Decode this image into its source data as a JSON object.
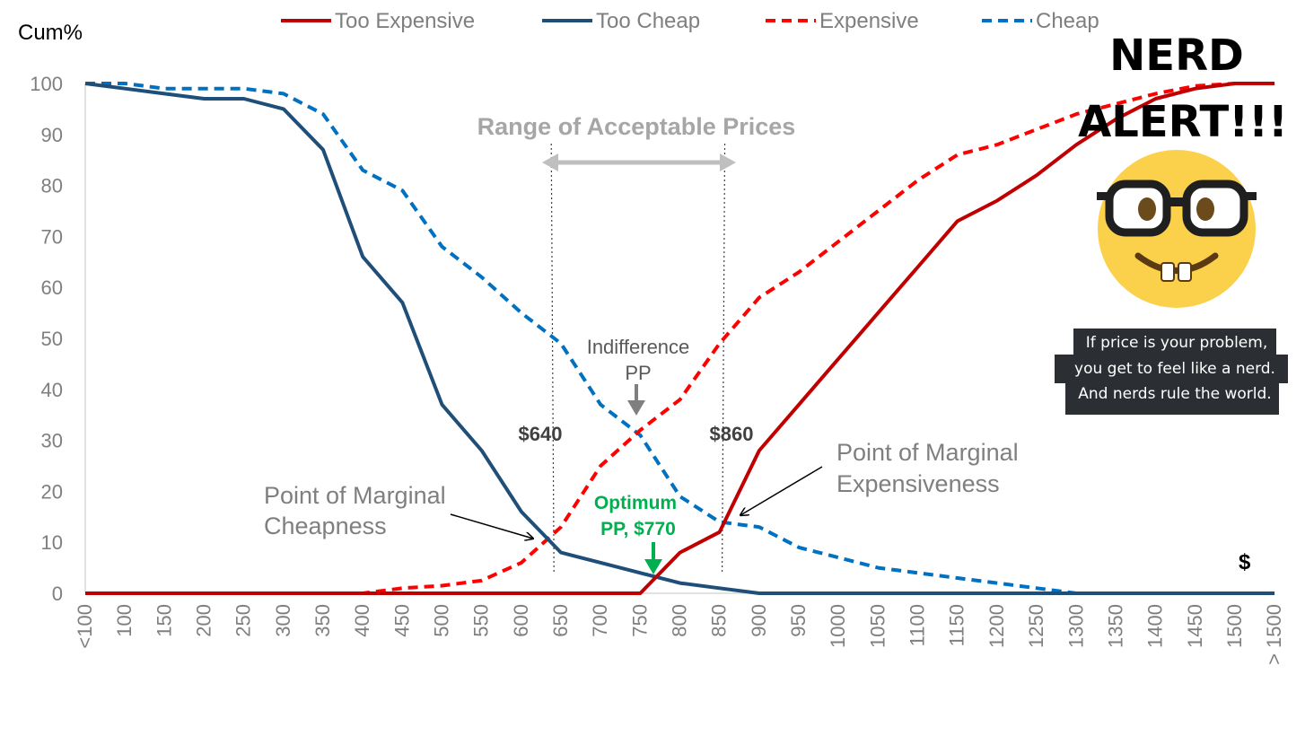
{
  "chart_data": {
    "type": "line",
    "ylabel": "Cum%",
    "xlabel": "$",
    "ylim": [
      0,
      100
    ],
    "yticks": [
      "0",
      "10",
      "20",
      "30",
      "40",
      "50",
      "60",
      "70",
      "80",
      "90",
      "100"
    ],
    "categories": [
      "<100",
      "100",
      "150",
      "200",
      "250",
      "300",
      "350",
      "400",
      "450",
      "500",
      "550",
      "600",
      "650",
      "700",
      "750",
      "800",
      "850",
      "900",
      "950",
      "1000",
      "1050",
      "1100",
      "1150",
      "1200",
      "1250",
      "1300",
      "1350",
      "1400",
      "1450",
      "1500",
      "> 1500"
    ],
    "series": [
      {
        "name": "Too Expensive",
        "color": "#c00000",
        "dash": "solid",
        "values": [
          0,
          0,
          0,
          0,
          0,
          0,
          0,
          0,
          0,
          0,
          0,
          0,
          0,
          0,
          0,
          8,
          12,
          28,
          37,
          46,
          55,
          64,
          73,
          77,
          82,
          88,
          93,
          97,
          99,
          100,
          100
        ]
      },
      {
        "name": "Too Cheap",
        "color": "#1f4e79",
        "dash": "solid",
        "values": [
          100,
          99,
          98,
          97,
          97,
          95,
          87,
          66,
          57,
          37,
          28,
          16,
          8,
          6,
          4,
          2,
          1,
          0,
          0,
          0,
          0,
          0,
          0,
          0,
          0,
          0,
          0,
          0,
          0,
          0,
          0
        ]
      },
      {
        "name": "Expensive",
        "color": "#ff0000",
        "dash": "dashed",
        "values": [
          0,
          0,
          0,
          0,
          0,
          0,
          0,
          0,
          1,
          1.5,
          2.5,
          6,
          13,
          25,
          32,
          38,
          49,
          58,
          63,
          69,
          75,
          81,
          86,
          88,
          91,
          94,
          96,
          98,
          99.5,
          100,
          100
        ]
      },
      {
        "name": "Cheap",
        "color": "#0070c0",
        "dash": "dashed",
        "values": [
          100,
          100,
          99,
          99,
          99,
          98,
          94,
          83,
          79,
          68,
          62,
          55,
          49,
          37,
          31,
          19,
          14,
          13,
          9,
          7,
          5,
          4,
          3,
          2,
          1,
          0,
          0,
          0,
          0,
          0,
          0
        ]
      }
    ],
    "annotations": {
      "range_title": "Range of Acceptable Prices",
      "range_low": "$640",
      "range_high": "$860",
      "indifference_line1": "Indifference",
      "indifference_line2": "PP",
      "optimum_line1": "Optimum",
      "optimum_line2": "PP, $770",
      "marginal_cheap_line1": "Point of Marginal",
      "marginal_cheap_line2": "Cheapness",
      "marginal_exp_line1": "Point of Marginal",
      "marginal_exp_line2": "Expensiveness"
    }
  },
  "meme": {
    "title_line1": "NERD",
    "title_line2": "ALERT!!!",
    "emoji": "nerd-face-emoji",
    "caption_lines": [
      "If price is your problem,",
      "you get to feel like a nerd.",
      "And nerds rule the world."
    ]
  }
}
